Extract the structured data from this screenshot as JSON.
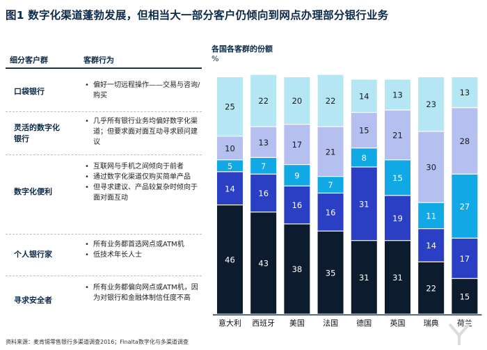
{
  "title": "图1 数字化渠道蓬勃发展，但相当大一部分客户仍倾向到网点办理部分银行业务",
  "table": {
    "col1_header": "细分客户群",
    "col2_header": "客群行为",
    "rows": [
      {
        "segment": [
          "口袋银行"
        ],
        "bullets": [
          "偏好一切远程操作——交易与咨询/购买"
        ]
      },
      {
        "segment": [
          "灵活的数字化",
          "银行"
        ],
        "bullets": [
          "几乎所有银行业务均偏好数字化渠道；但要求面对面互动寻求顾问建议"
        ]
      },
      {
        "segment": [
          "数字化便利"
        ],
        "bullets": [
          "互联网与手机之间倾向于前者",
          "通过数字化渠道仅购买简单产品",
          "但寻求建议、产品较复杂时倾向于面对面互动"
        ]
      },
      {
        "segment": [
          "个人银行家"
        ],
        "bullets": [
          "所有业务都首选网点或ATM机",
          "低技术年长人士"
        ]
      },
      {
        "segment": [
          "寻求安全者"
        ],
        "bullets": [
          "所有业务都偏向网点或ATM机，因为对银行和金融体制信任度不高"
        ]
      }
    ]
  },
  "chart_data": {
    "type": "bar",
    "stacked": true,
    "title": "各国各客群的份额",
    "ylabel": "%",
    "ylim": [
      0,
      100
    ],
    "categories": [
      "意大利",
      "西班牙",
      "美国",
      "法国",
      "德国",
      "英国",
      "瑞典",
      "荷兰"
    ],
    "series": [
      {
        "name": "寻求安全者",
        "values": [
          46,
          43,
          38,
          35,
          31,
          31,
          22,
          15
        ],
        "color": "#0d1b2e",
        "label_color": "#ffffff"
      },
      {
        "name": "个人银行家",
        "values": [
          14,
          16,
          16,
          16,
          31,
          19,
          14,
          17
        ],
        "color": "#2a3fc4",
        "label_color": "#ffffff"
      },
      {
        "name": "数字化便利",
        "values": [
          5,
          7,
          9,
          7,
          8,
          15,
          11,
          27
        ],
        "color": "#11a8e6",
        "label_color": "#ffffff"
      },
      {
        "name": "灵活的数字化银行",
        "values": [
          10,
          13,
          17,
          21,
          15,
          21,
          30,
          28
        ],
        "color": "#b5bff0",
        "label_color": "#1a1a1a"
      },
      {
        "name": "口袋银行",
        "values": [
          25,
          22,
          20,
          22,
          14,
          13,
          23,
          13
        ],
        "color": "#b5e6f4",
        "label_color": "#1a1a1a"
      }
    ]
  },
  "source": "资料来源：麦肯锡零售银行多渠道调查2016；Finalta数字化与多渠道调查",
  "watermark_icon": "watermark-logo-icon"
}
